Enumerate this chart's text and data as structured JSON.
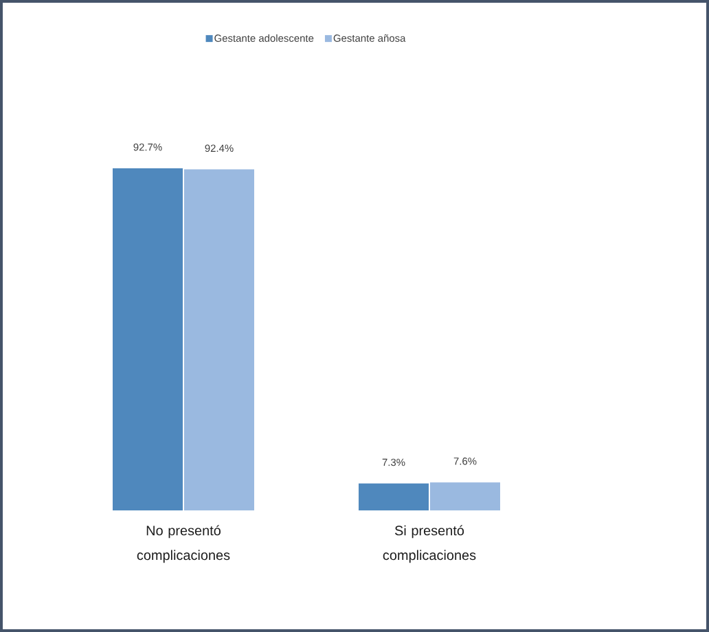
{
  "chart_data": {
    "type": "bar",
    "categories": [
      "No presentó complicaciones",
      "Si presentó complicaciones"
    ],
    "series": [
      {
        "name": "Gestante adolescente",
        "color": "#4f88bd",
        "values": [
          92.7,
          7.3
        ],
        "value_labels": [
          "92.7%",
          "7.3%"
        ]
      },
      {
        "name": "Gestante añosa",
        "color": "#9ab9e0",
        "values": [
          92.4,
          7.6
        ],
        "value_labels": [
          "92.4%",
          "7.6%"
        ]
      }
    ],
    "legend": "top"
  }
}
